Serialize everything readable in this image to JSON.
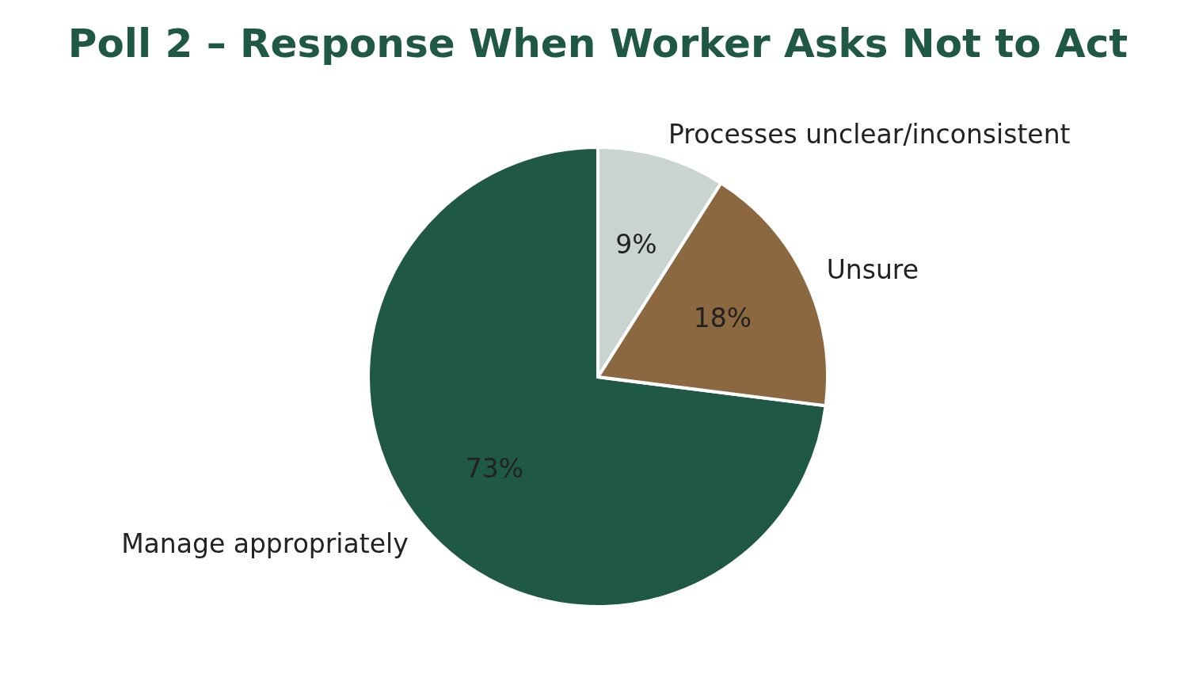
{
  "chart_data": {
    "type": "pie",
    "title": "Poll 2 – Response When Worker Asks Not to Act",
    "categories": [
      "Manage appropriately",
      "Unsure",
      "Processes unclear/inconsistent"
    ],
    "values": [
      73,
      18,
      9
    ],
    "value_labels": [
      "73%",
      "18%",
      "9%"
    ],
    "colors": [
      "#205846",
      "#8c6840",
      "#c9d3cf"
    ]
  }
}
